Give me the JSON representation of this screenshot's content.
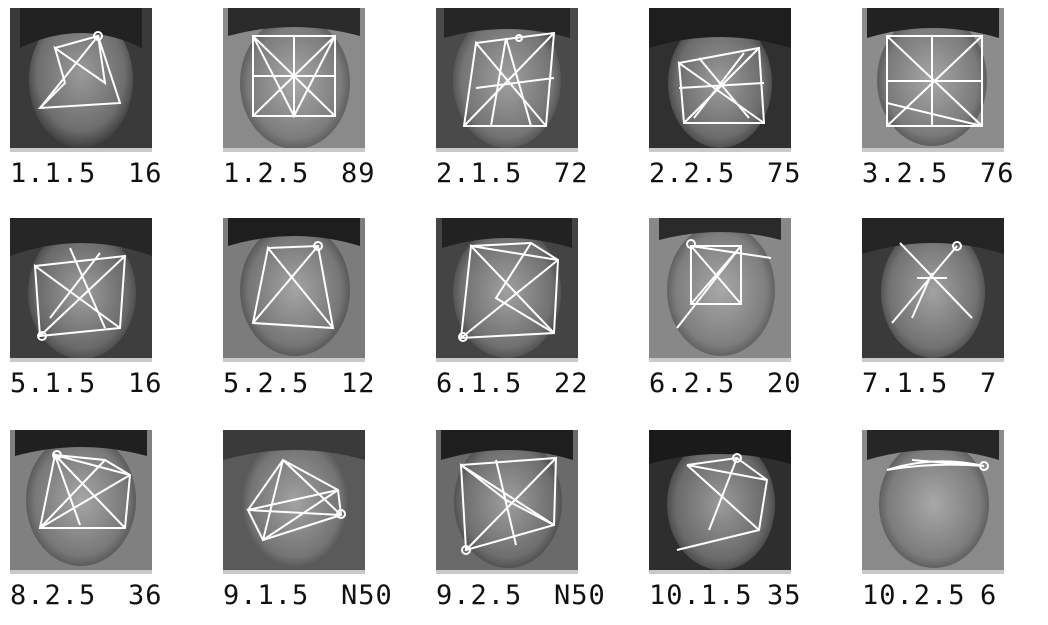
{
  "panels": [
    {
      "id": "1.1.5",
      "score": "16"
    },
    {
      "id": "1.2.5",
      "score": "89"
    },
    {
      "id": "2.1.5",
      "score": "72"
    },
    {
      "id": "2.2.5",
      "score": "75"
    },
    {
      "id": "3.2.5",
      "score": "76"
    },
    {
      "id": "5.1.5",
      "score": "16"
    },
    {
      "id": "5.2.5",
      "score": "12"
    },
    {
      "id": "6.1.5",
      "score": "22"
    },
    {
      "id": "6.2.5",
      "score": "20"
    },
    {
      "id": "7.1.5",
      "score": "7"
    },
    {
      "id": "8.2.5",
      "score": "36"
    },
    {
      "id": "9.1.5",
      "score": "N50"
    },
    {
      "id": "9.2.5",
      "score": "N50"
    },
    {
      "id": "10.1.5",
      "score": "35"
    },
    {
      "id": "10.2.5",
      "score": "6"
    }
  ],
  "colors": {
    "background": "#ffffff",
    "text": "#111111",
    "graph_lines": "#ffffff",
    "photo_grayscale": "#7a7a7a"
  }
}
